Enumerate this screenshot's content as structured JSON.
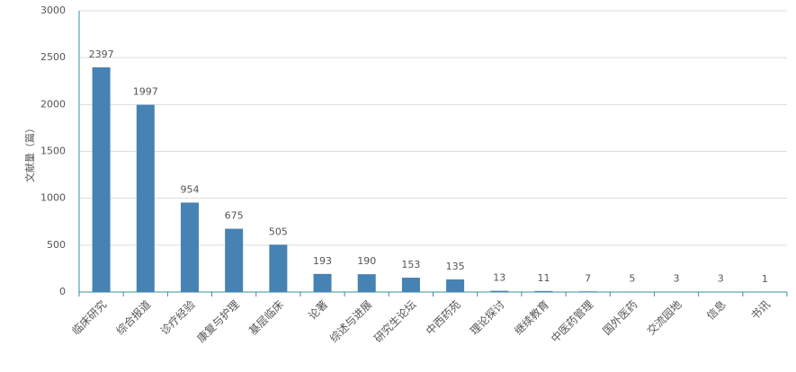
{
  "chart_data": {
    "type": "bar",
    "y_label": "文献量（篇）",
    "categories": [
      "临床研究",
      "综合报道",
      "诊疗经验",
      "康复与护理",
      "基层临床",
      "论著",
      "综述与进展",
      "研究生论坛",
      "中西药苑",
      "理论探讨",
      "继续教育",
      "中医药管理",
      "国外医药",
      "交流园地",
      "信息",
      "书讯"
    ],
    "values": [
      2397,
      1997,
      954,
      675,
      505,
      193,
      190,
      153,
      135,
      13,
      11,
      7,
      5,
      3,
      3,
      1
    ],
    "color": "#4682b4",
    "ylim": [
      0,
      3000
    ],
    "yticks": [
      0,
      500,
      1000,
      1500,
      2000,
      2500,
      3000
    ],
    "grid": true
  }
}
